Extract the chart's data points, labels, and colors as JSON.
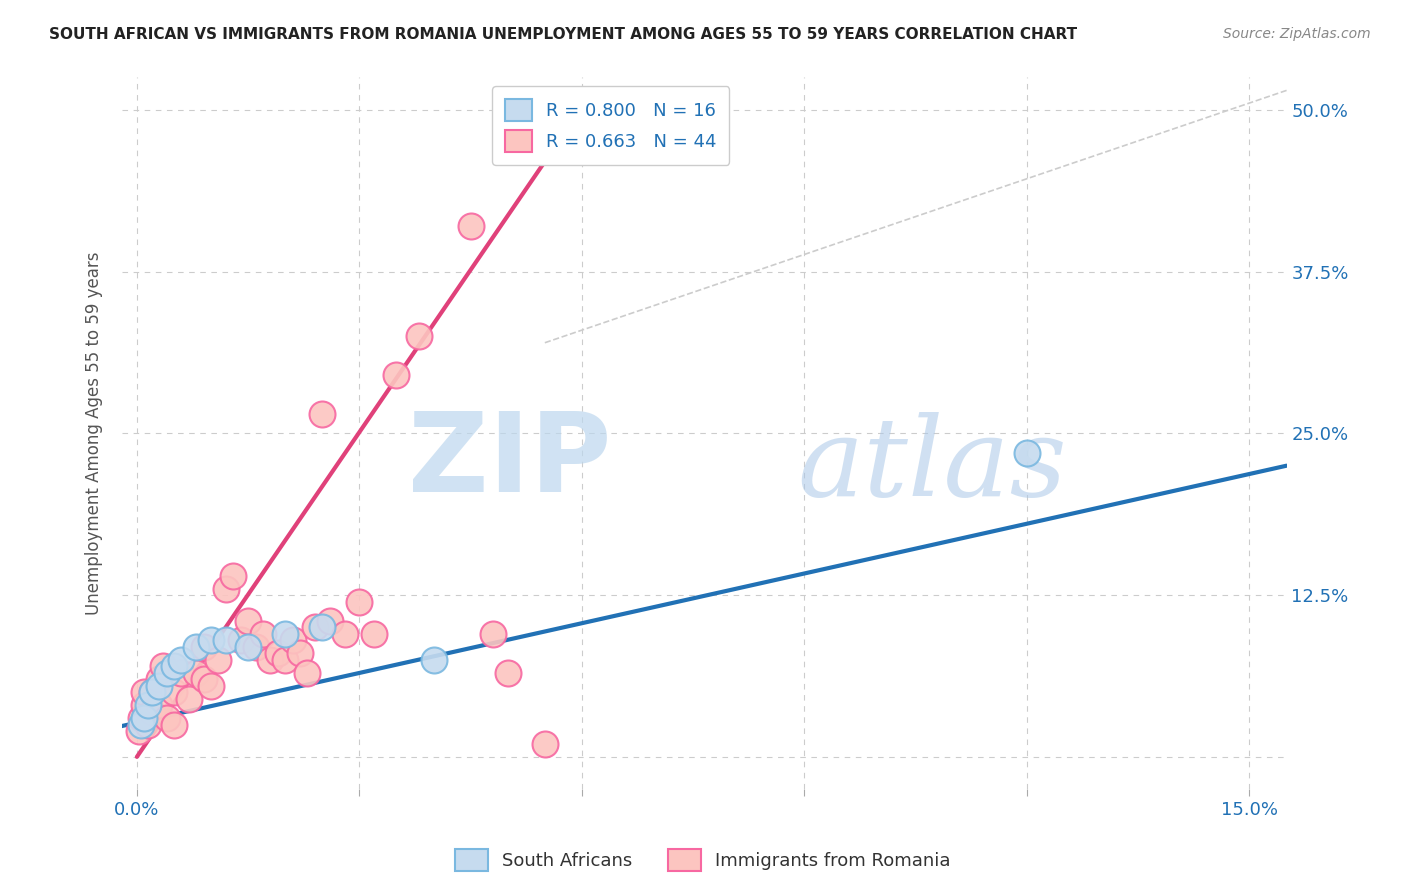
{
  "title": "SOUTH AFRICAN VS IMMIGRANTS FROM ROMANIA UNEMPLOYMENT AMONG AGES 55 TO 59 YEARS CORRELATION CHART",
  "source": "Source: ZipAtlas.com",
  "ylabel": "Unemployment Among Ages 55 to 59 years",
  "xlim": [
    -0.002,
    0.155
  ],
  "ylim": [
    -0.025,
    0.525
  ],
  "xticks": [
    0.0,
    0.03,
    0.06,
    0.09,
    0.12,
    0.15
  ],
  "xticklabels": [
    "0.0%",
    "",
    "",
    "",
    "",
    "15.0%"
  ],
  "yticks": [
    0.0,
    0.125,
    0.25,
    0.375,
    0.5
  ],
  "yticklabels": [
    "",
    "12.5%",
    "25.0%",
    "37.5%",
    "50.0%"
  ],
  "blue_scatter_x": [
    0.0005,
    0.001,
    0.0015,
    0.002,
    0.003,
    0.004,
    0.005,
    0.006,
    0.008,
    0.01,
    0.012,
    0.015,
    0.02,
    0.025,
    0.04,
    0.12
  ],
  "blue_scatter_y": [
    0.025,
    0.03,
    0.04,
    0.05,
    0.055,
    0.065,
    0.07,
    0.075,
    0.085,
    0.09,
    0.09,
    0.085,
    0.095,
    0.1,
    0.075,
    0.235
  ],
  "pink_scatter_x": [
    0.0003,
    0.0005,
    0.001,
    0.001,
    0.0015,
    0.002,
    0.002,
    0.003,
    0.003,
    0.0035,
    0.004,
    0.005,
    0.005,
    0.006,
    0.007,
    0.008,
    0.009,
    0.009,
    0.01,
    0.011,
    0.012,
    0.013,
    0.014,
    0.015,
    0.016,
    0.017,
    0.018,
    0.019,
    0.02,
    0.021,
    0.022,
    0.023,
    0.024,
    0.025,
    0.026,
    0.028,
    0.03,
    0.032,
    0.035,
    0.038,
    0.045,
    0.048,
    0.05,
    0.055
  ],
  "pink_scatter_y": [
    0.02,
    0.03,
    0.04,
    0.05,
    0.025,
    0.05,
    0.035,
    0.06,
    0.04,
    0.07,
    0.03,
    0.05,
    0.025,
    0.065,
    0.045,
    0.065,
    0.06,
    0.085,
    0.055,
    0.075,
    0.13,
    0.14,
    0.09,
    0.105,
    0.085,
    0.095,
    0.075,
    0.08,
    0.075,
    0.09,
    0.08,
    0.065,
    0.1,
    0.265,
    0.105,
    0.095,
    0.12,
    0.095,
    0.295,
    0.325,
    0.41,
    0.095,
    0.065,
    0.01
  ],
  "blue_line_x": [
    -0.005,
    0.155
  ],
  "blue_line_y": [
    0.02,
    0.225
  ],
  "pink_line_x": [
    0.0,
    0.055
  ],
  "pink_line_y": [
    0.0,
    0.46
  ],
  "diagonal_line_x": [
    0.055,
    0.155
  ],
  "diagonal_line_y": [
    0.32,
    0.515
  ],
  "blue_color": "#7ab8e0",
  "blue_fill": "#c6dbef",
  "blue_line_color": "#2171b5",
  "pink_color": "#f768a1",
  "pink_fill": "#fcc5c0",
  "pink_line_color": "#e0417a",
  "R_blue": "0.800",
  "N_blue": "16",
  "R_pink": "0.663",
  "N_pink": "44",
  "watermark_zip": "ZIP",
  "watermark_atlas": "atlas",
  "background_color": "#ffffff"
}
